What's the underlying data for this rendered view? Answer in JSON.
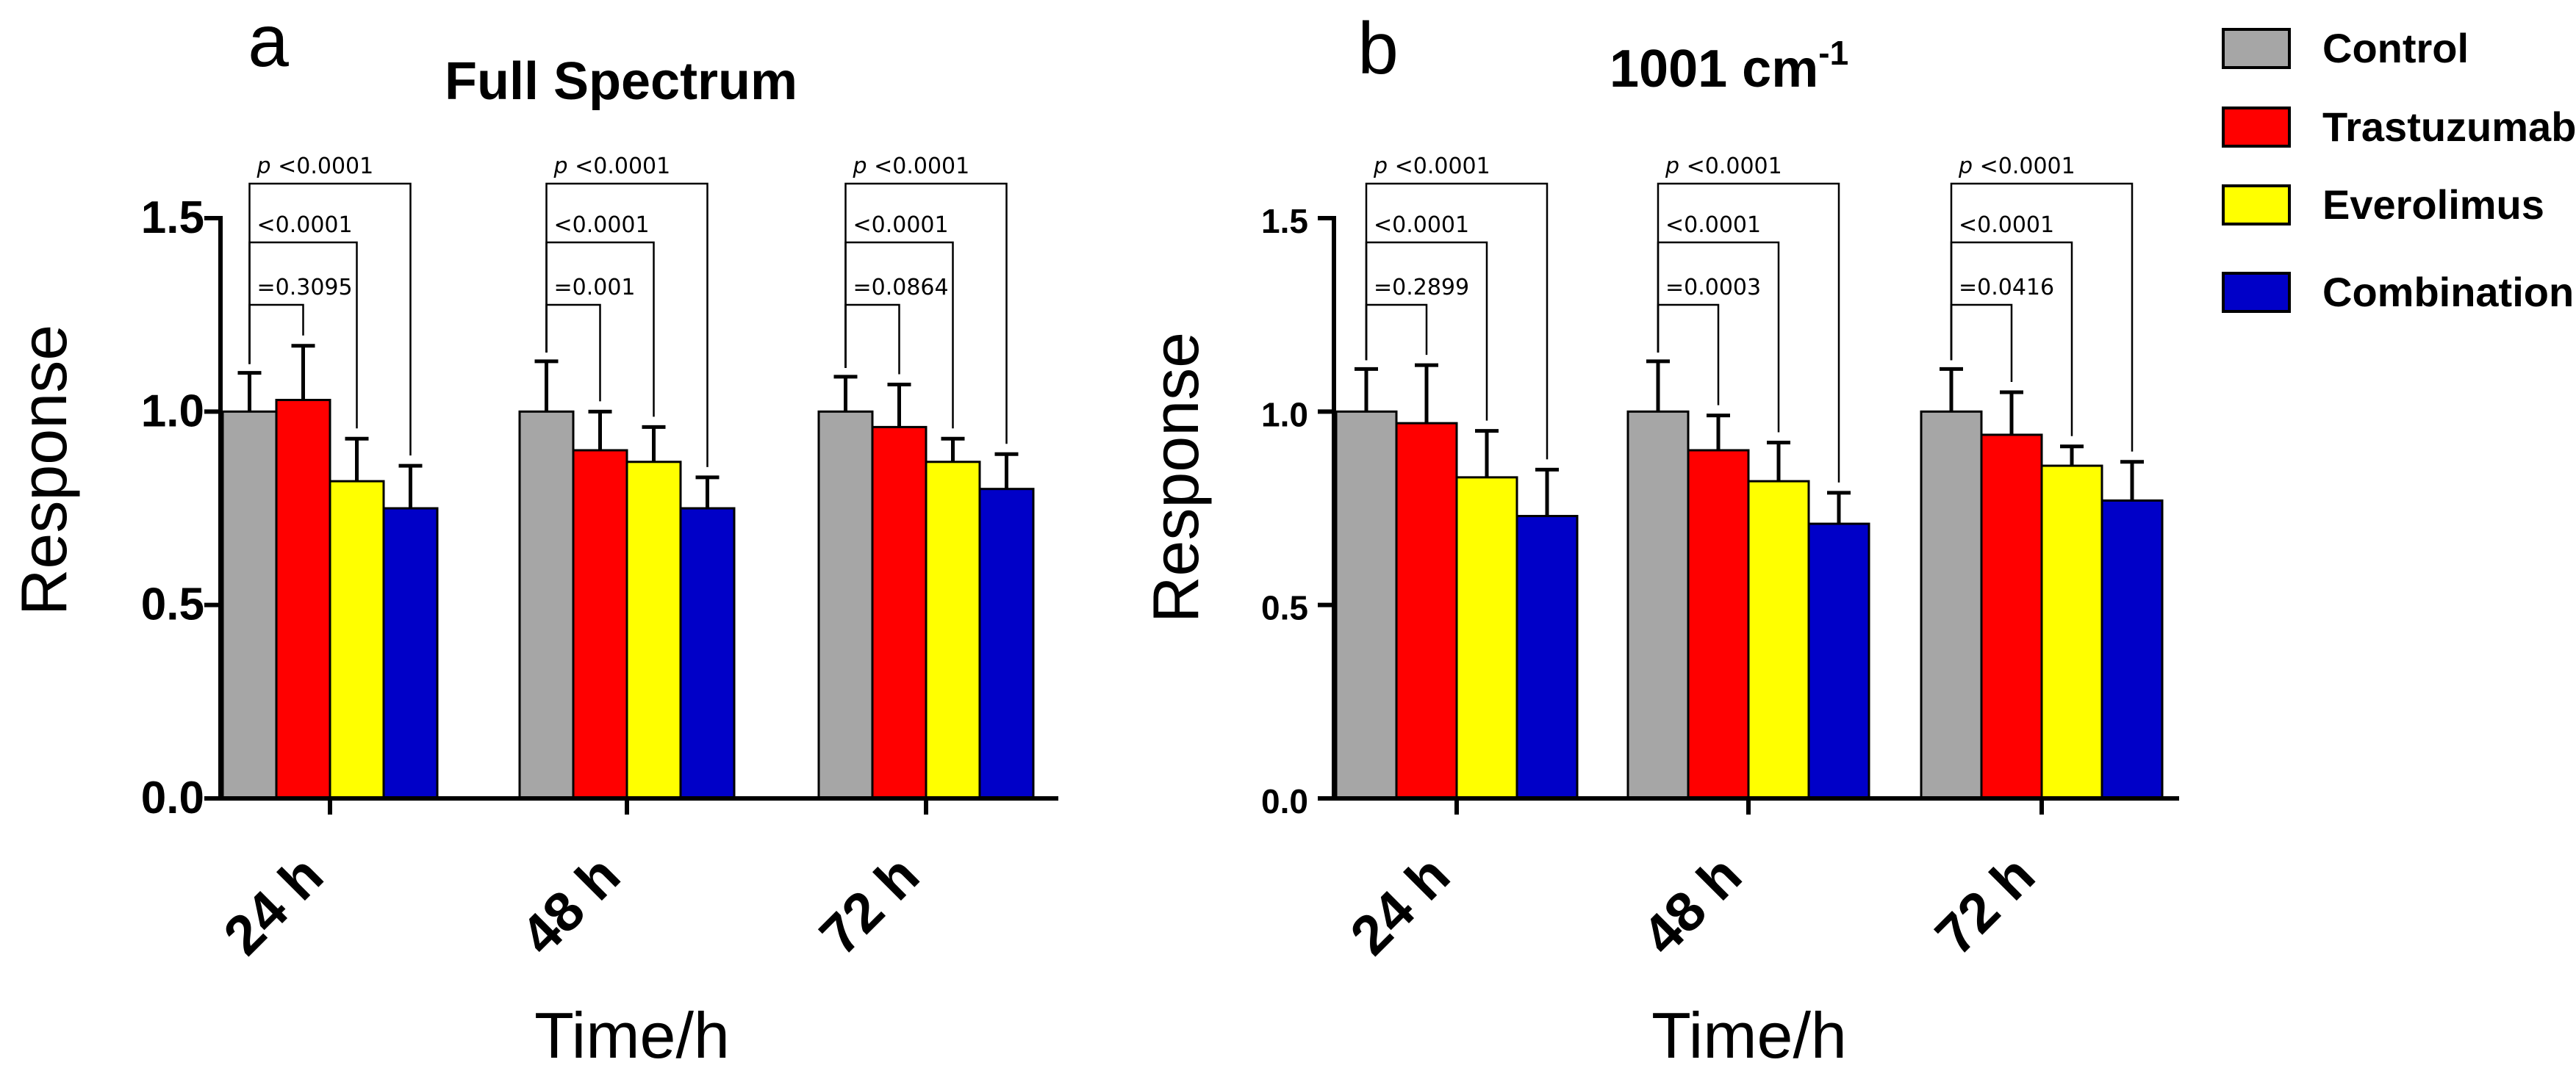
{
  "chart_data": [
    {
      "type": "bar",
      "panel": "a",
      "title": "Full Spectrum",
      "title_sup": "",
      "xlabel": "Time/h",
      "ylabel": "Response",
      "ylim": [
        0,
        1.5
      ],
      "yticks": [
        "0.0",
        "0.5",
        "1.0",
        "1.5"
      ],
      "categories": [
        "24 h",
        "48 h",
        "72 h"
      ],
      "series": [
        {
          "name": "Control",
          "color": "#a6a6a6",
          "values": [
            1.0,
            1.0,
            1.0
          ],
          "errors": [
            0.1,
            0.13,
            0.09
          ]
        },
        {
          "name": "Trastuzumab",
          "color": "#ff0000",
          "values": [
            1.03,
            0.9,
            0.96
          ],
          "errors": [
            0.14,
            0.1,
            0.11
          ]
        },
        {
          "name": "Everolimus",
          "color": "#ffff00",
          "values": [
            0.82,
            0.87,
            0.87
          ],
          "errors": [
            0.11,
            0.09,
            0.06
          ]
        },
        {
          "name": "Combination",
          "color": "#0000c8",
          "values": [
            0.75,
            0.75,
            0.8
          ],
          "errors": [
            0.11,
            0.08,
            0.09
          ]
        }
      ],
      "annotations": [
        [
          {
            "prefix": "=",
            "value": "0.3095"
          },
          {
            "prefix": "<",
            "value": "0.0001"
          },
          {
            "prefix": "p <",
            "value": "0.0001"
          }
        ],
        [
          {
            "prefix": "=",
            "value": "0.001"
          },
          {
            "prefix": "<",
            "value": "0.0001"
          },
          {
            "prefix": "p <",
            "value": "0.0001"
          }
        ],
        [
          {
            "prefix": "=",
            "value": "0.0864"
          },
          {
            "prefix": "<",
            "value": "0.0001"
          },
          {
            "prefix": "p <",
            "value": "0.0001"
          }
        ]
      ]
    },
    {
      "type": "bar",
      "panel": "b",
      "title": "1001 cm",
      "title_sup": "-1",
      "xlabel": "Time/h",
      "ylabel": "Response",
      "ylim": [
        0,
        1.5
      ],
      "yticks": [
        "0.0",
        "0.5",
        "1.0",
        "1.5"
      ],
      "categories": [
        "24 h",
        "48 h",
        "72 h"
      ],
      "series": [
        {
          "name": "Control",
          "color": "#a6a6a6",
          "values": [
            1.0,
            1.0,
            1.0
          ],
          "errors": [
            0.11,
            0.13,
            0.11
          ]
        },
        {
          "name": "Trastuzumab",
          "color": "#ff0000",
          "values": [
            0.97,
            0.9,
            0.94
          ],
          "errors": [
            0.15,
            0.09,
            0.11
          ]
        },
        {
          "name": "Everolimus",
          "color": "#ffff00",
          "values": [
            0.83,
            0.82,
            0.86
          ],
          "errors": [
            0.12,
            0.1,
            0.05
          ]
        },
        {
          "name": "Combination",
          "color": "#0000c8",
          "values": [
            0.73,
            0.71,
            0.77
          ],
          "errors": [
            0.12,
            0.08,
            0.1
          ]
        }
      ],
      "annotations": [
        [
          {
            "prefix": "=",
            "value": "0.2899"
          },
          {
            "prefix": "<",
            "value": "0.0001"
          },
          {
            "prefix": "p <",
            "value": "0.0001"
          }
        ],
        [
          {
            "prefix": "=",
            "value": "0.0003"
          },
          {
            "prefix": "<",
            "value": "0.0001"
          },
          {
            "prefix": "p <",
            "value": "0.0001"
          }
        ],
        [
          {
            "prefix": "=",
            "value": "0.0416"
          },
          {
            "prefix": "<",
            "value": "0.0001"
          },
          {
            "prefix": "p <",
            "value": "0.0001"
          }
        ]
      ]
    }
  ],
  "legend": {
    "placement": "top-right",
    "items": [
      {
        "name": "Control",
        "color": "#a6a6a6"
      },
      {
        "name": "Trastuzumab",
        "color": "#ff0000"
      },
      {
        "name": "Everolimus",
        "color": "#ffff00"
      },
      {
        "name": "Combination",
        "color": "#0000c8"
      }
    ]
  }
}
